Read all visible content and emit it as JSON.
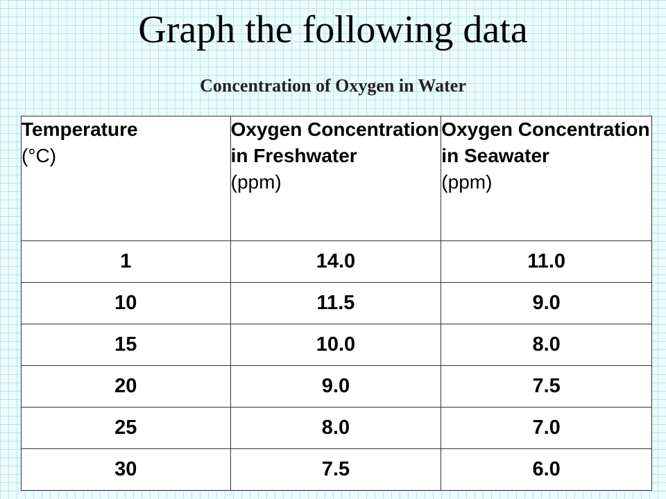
{
  "slide": {
    "title": "Graph the following data"
  },
  "chart_data": {
    "type": "table",
    "title": "Concentration of Oxygen in Water",
    "columns": [
      {
        "bold": "Temperature",
        "normal": "(°C)"
      },
      {
        "bold": "Oxygen Concentration in Freshwater",
        "normal": "(ppm)"
      },
      {
        "bold": "Oxygen Concentration in Seawater",
        "normal": "(ppm)"
      }
    ],
    "rows": [
      [
        "1",
        "14.0",
        "11.0"
      ],
      [
        "10",
        "11.5",
        "9.0"
      ],
      [
        "15",
        "10.0",
        "8.0"
      ],
      [
        "20",
        "9.0",
        "7.5"
      ],
      [
        "25",
        "8.0",
        "7.0"
      ],
      [
        "30",
        "7.5",
        "6.0"
      ]
    ],
    "x": [
      1,
      10,
      15,
      20,
      25,
      30
    ],
    "series": [
      {
        "name": "Oxygen Concentration in Freshwater",
        "values": [
          14.0,
          11.5,
          10.0,
          9.0,
          8.0,
          7.5
        ]
      },
      {
        "name": "Oxygen Concentration in Seawater",
        "values": [
          11.0,
          9.0,
          8.0,
          7.5,
          7.0,
          6.0
        ]
      }
    ]
  }
}
